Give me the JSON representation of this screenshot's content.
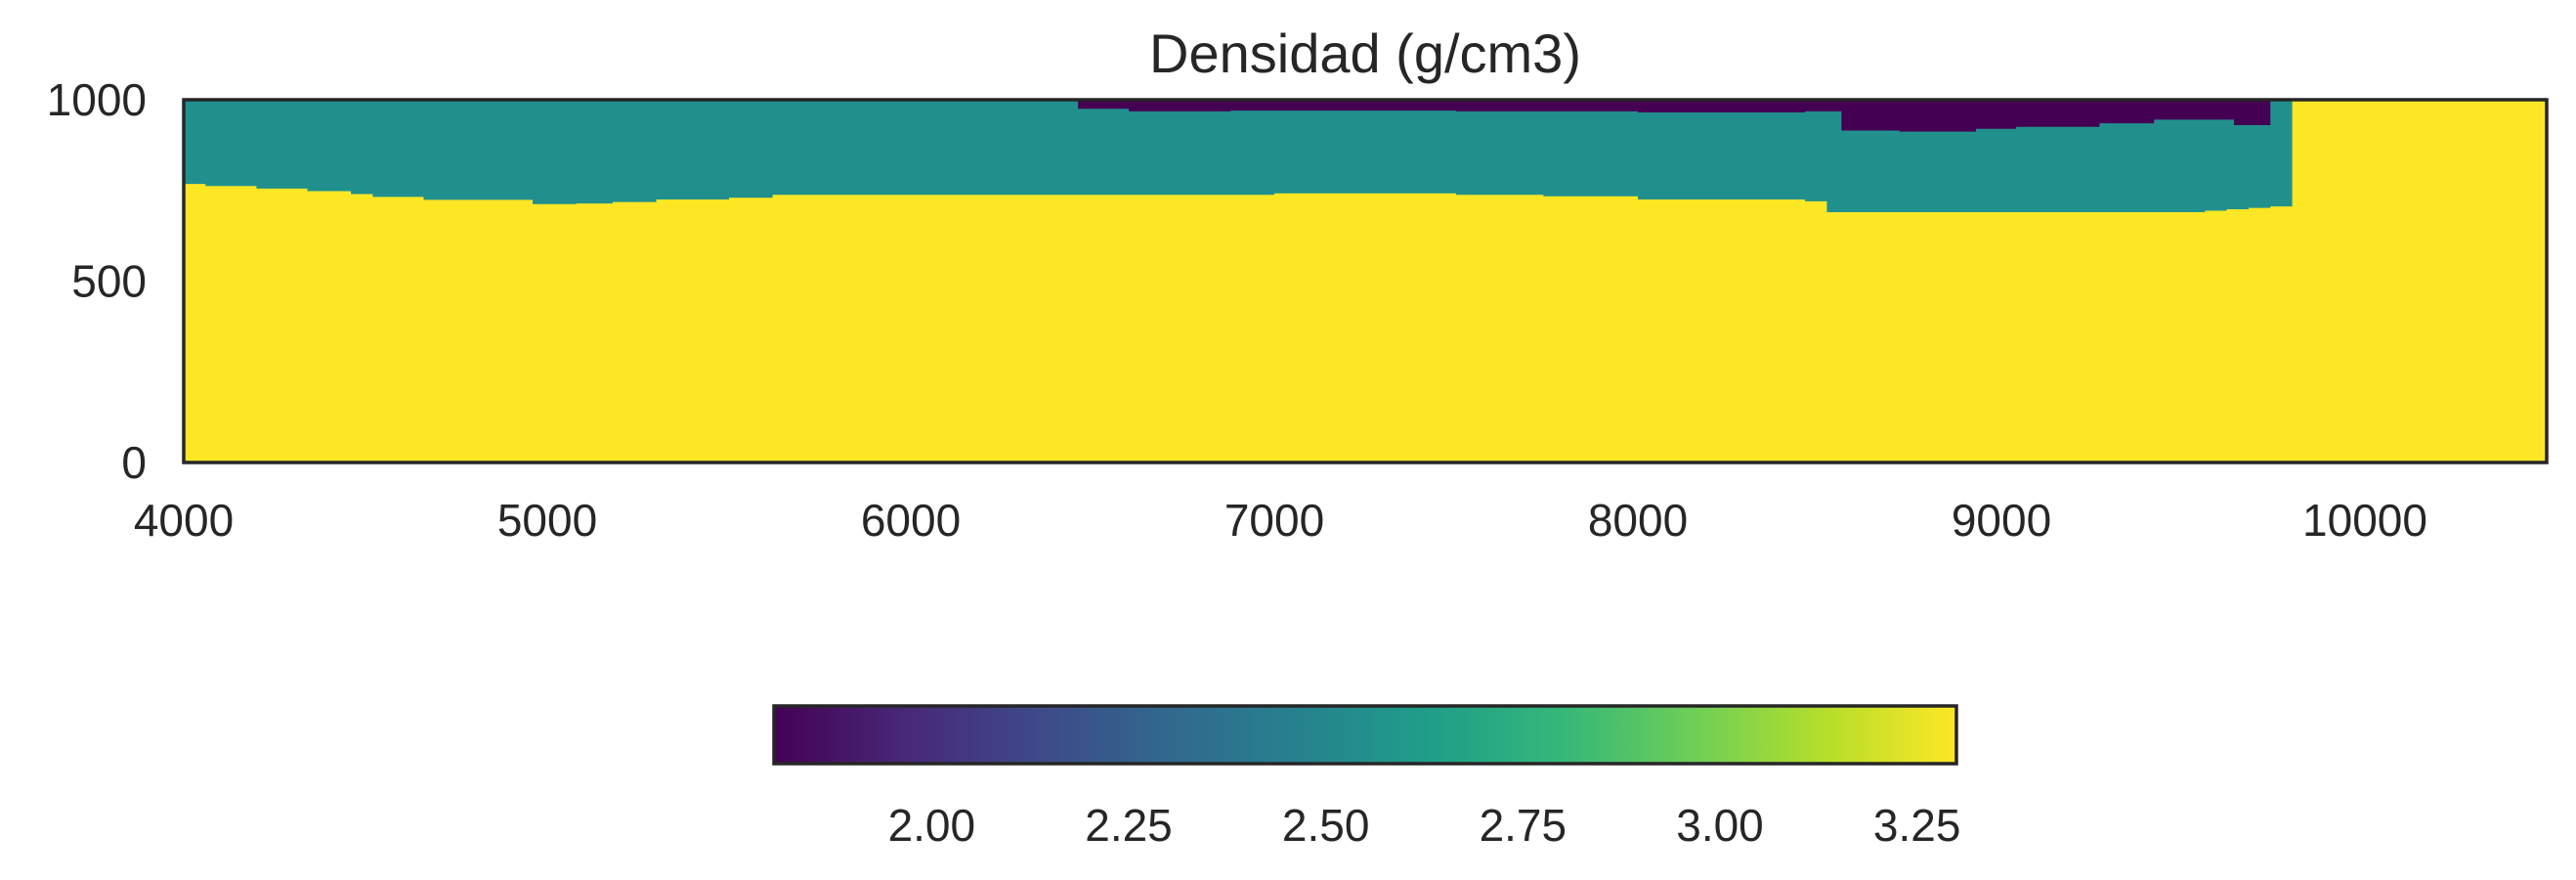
{
  "chart_data": [
    {
      "type": "heatmap",
      "title": "Densidad (g/cm3)",
      "xlabel": "",
      "ylabel": "",
      "xlim": [
        4000,
        10500
      ],
      "ylim": [
        0,
        1000
      ],
      "x_ticks": [
        "4000",
        "5000",
        "6000",
        "7000",
        "8000",
        "9000",
        "10000"
      ],
      "y_ticks": [
        "0",
        "500",
        "1000"
      ],
      "grid": false,
      "colormap": "viridis",
      "values_description_units": "g/cm3",
      "layers": [
        {
          "name": "low",
          "value": 1.8,
          "color": "#440154",
          "x": [
            6460,
            6600,
            6880,
            7500,
            7830,
            8000,
            8460,
            8560,
            8720,
            8930,
            9040,
            9270,
            9420,
            9560,
            9640,
            9740
          ],
          "top": [
            1000,
            1000,
            1000,
            1000,
            1000,
            1000,
            1000,
            1000,
            1000,
            1000,
            1000,
            1000,
            1000,
            1000,
            1000,
            1000
          ],
          "bottom": [
            975,
            968,
            970,
            968,
            968,
            965,
            968,
            915,
            912,
            920,
            925,
            935,
            945,
            945,
            930,
            975
          ]
        },
        {
          "name": "mid",
          "value": 2.55,
          "color": "#21908d",
          "x": [
            4000,
            4060,
            4200,
            4340,
            4460,
            4520,
            4660,
            4960,
            5080,
            5180,
            5300,
            5500,
            5620,
            6000,
            6500,
            7000,
            7500,
            7740,
            8000,
            8460,
            8520,
            8800,
            9100,
            9400,
            9560,
            9620,
            9680,
            9740,
            9800
          ],
          "bottom": [
            768,
            762,
            755,
            748,
            740,
            732,
            724,
            712,
            714,
            718,
            725,
            730,
            738,
            738,
            738,
            742,
            738,
            734,
            725,
            720,
            690,
            690,
            690,
            690,
            694,
            698,
            702,
            706,
            706
          ]
        },
        {
          "name": "high",
          "value": 3.3,
          "color": "#fde725",
          "fills_remainder": true
        }
      ],
      "colorbar": {
        "orientation": "horizontal",
        "min": 1.8,
        "max": 3.3,
        "ticks": [
          "2.00",
          "2.25",
          "2.50",
          "2.75",
          "3.00",
          "3.25"
        ],
        "tick_values": [
          2.0,
          2.25,
          2.5,
          2.75,
          3.0,
          3.25
        ],
        "colors": [
          "#440154",
          "#482878",
          "#3e4989",
          "#31688e",
          "#26828e",
          "#1f9e89",
          "#35b779",
          "#6ece58",
          "#b5de2b",
          "#fde725"
        ]
      }
    }
  ]
}
